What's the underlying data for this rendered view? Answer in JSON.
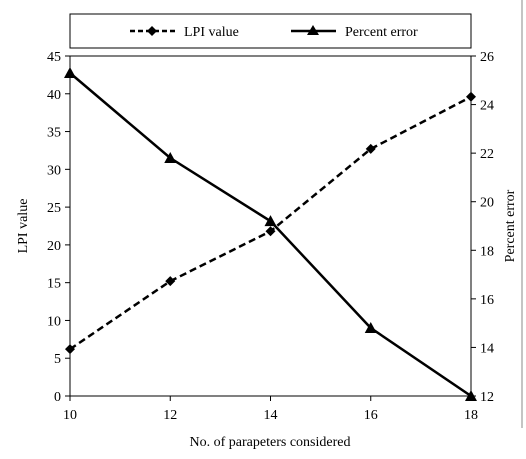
{
  "chart_data": {
    "type": "line",
    "title": "",
    "xlabel": "No. of parapeters considered",
    "ylabel_left": "LPI value",
    "ylabel_right": "Percent error",
    "x": [
      10,
      12,
      14,
      16,
      18
    ],
    "xlim": [
      10,
      18
    ],
    "x_ticks": [
      "10",
      "12",
      "14",
      "16",
      "18"
    ],
    "ylim_left": [
      0,
      45
    ],
    "y_left_ticks": [
      "0",
      "5",
      "10",
      "15",
      "20",
      "25",
      "30",
      "35",
      "40",
      "45"
    ],
    "ylim_right": [
      12,
      26
    ],
    "y_right_ticks": [
      "12",
      "14",
      "16",
      "18",
      "20",
      "22",
      "24",
      "26"
    ],
    "legend_position": "top",
    "grid": false,
    "series": [
      {
        "name": "LPI value",
        "axis": "left",
        "line_style": "dashed",
        "marker": "diamond",
        "color": "#000000",
        "values": [
          6.2,
          15.2,
          21.8,
          32.7,
          39.6
        ]
      },
      {
        "name": "Percent error",
        "axis": "right",
        "line_style": "solid",
        "marker": "triangle",
        "color": "#000000",
        "values": [
          25.3,
          21.8,
          19.2,
          14.8,
          12.0
        ]
      }
    ]
  }
}
